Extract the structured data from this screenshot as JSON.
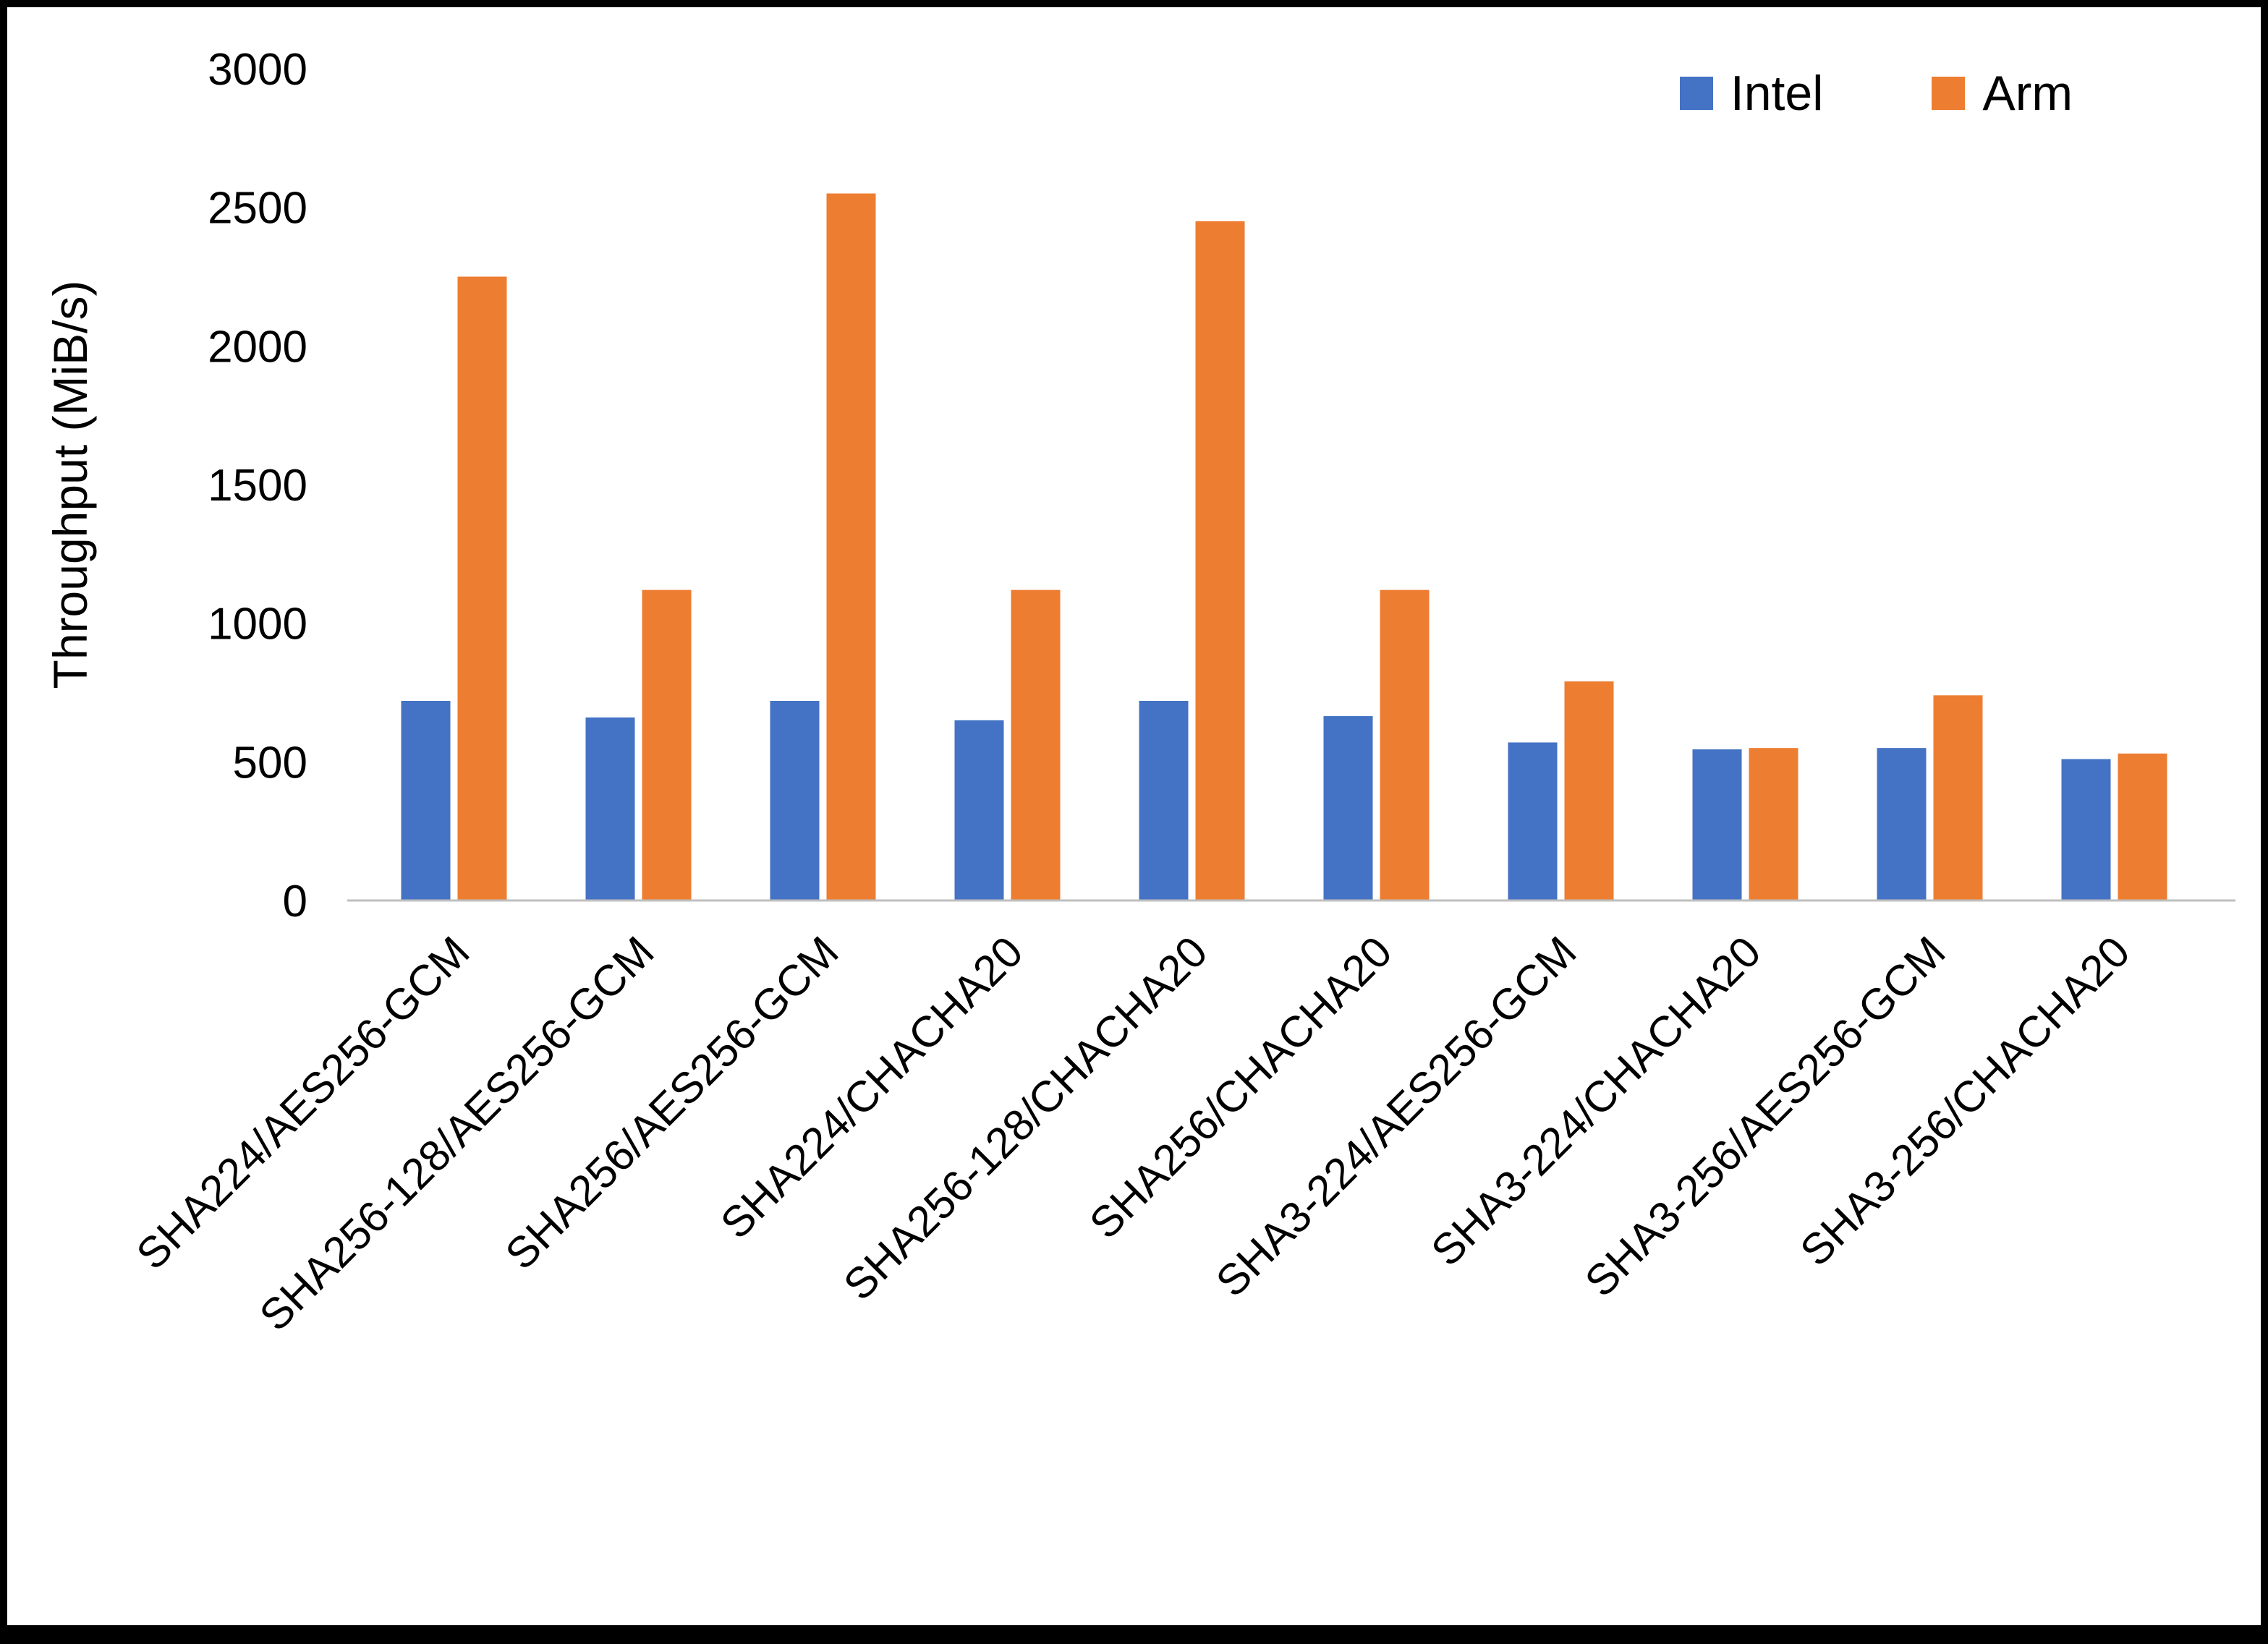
{
  "chart_data": {
    "type": "bar",
    "title": "",
    "xlabel": "",
    "ylabel": "Throughput (MiB/s)",
    "ylim": [
      0,
      3000
    ],
    "yticks": [
      0,
      500,
      1000,
      1500,
      2000,
      2500,
      3000
    ],
    "grid": false,
    "legend_position": "top-right",
    "categories": [
      "SHA224/AES256-GCM",
      "SHA256-128/AES256-GCM",
      "SHA256/AES256-GCM",
      "SHA224/CHACHA20",
      "SHA256-128/CHACHA20",
      "SHA256/CHACHA20",
      "SHA3-224/AES256-GCM",
      "SHA3-224/CHACHA20",
      "SHA3-256/AES256-GCM",
      "SHA3-256/CHACHA20"
    ],
    "series": [
      {
        "name": "Intel",
        "color": "#4472C4",
        "values": [
          720,
          660,
          720,
          650,
          720,
          665,
          570,
          545,
          550,
          510
        ]
      },
      {
        "name": "Arm",
        "color": "#ED7D31",
        "values": [
          2250,
          1120,
          2550,
          1120,
          2450,
          1120,
          790,
          550,
          740,
          530
        ]
      }
    ]
  }
}
